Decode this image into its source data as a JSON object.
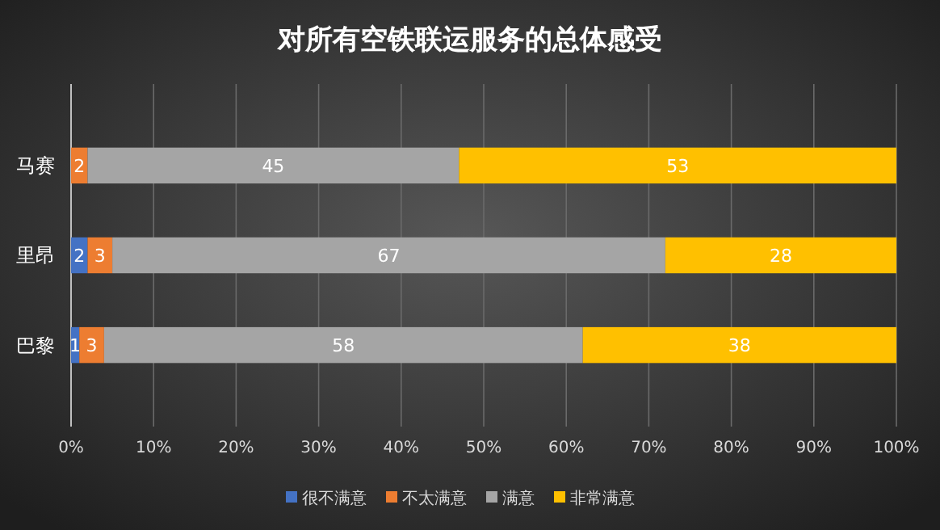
{
  "chart_data": {
    "type": "bar",
    "title": "对所有空铁联运服务的总体感受",
    "orientation": "horizontal",
    "stacked": true,
    "data_labels": true,
    "grid": "x",
    "legend": "bottom",
    "categories": [
      "马赛",
      "里昂",
      "巴黎"
    ],
    "xlim": [
      0,
      100
    ],
    "xticks": [
      {
        "value": 0,
        "label": "0%"
      },
      {
        "value": 10,
        "label": "10%"
      },
      {
        "value": 20,
        "label": "20%"
      },
      {
        "value": 30,
        "label": "30%"
      },
      {
        "value": 40,
        "label": "40%"
      },
      {
        "value": 50,
        "label": "50%"
      },
      {
        "value": 60,
        "label": "60%"
      },
      {
        "value": 70,
        "label": "70%"
      },
      {
        "value": 80,
        "label": "80%"
      },
      {
        "value": 90,
        "label": "90%"
      },
      {
        "value": 100,
        "label": "100%"
      }
    ],
    "series": [
      {
        "name": "很不满意",
        "color": "#4472c4",
        "values": [
          null,
          2,
          1
        ]
      },
      {
        "name": "不太满意",
        "color": "#ed7d31",
        "values": [
          2,
          3,
          3
        ]
      },
      {
        "name": "满意",
        "color": "#a5a5a5",
        "values": [
          45,
          67,
          58
        ]
      },
      {
        "name": "非常满意",
        "color": "#ffc000",
        "values": [
          53,
          28,
          38
        ]
      }
    ]
  }
}
